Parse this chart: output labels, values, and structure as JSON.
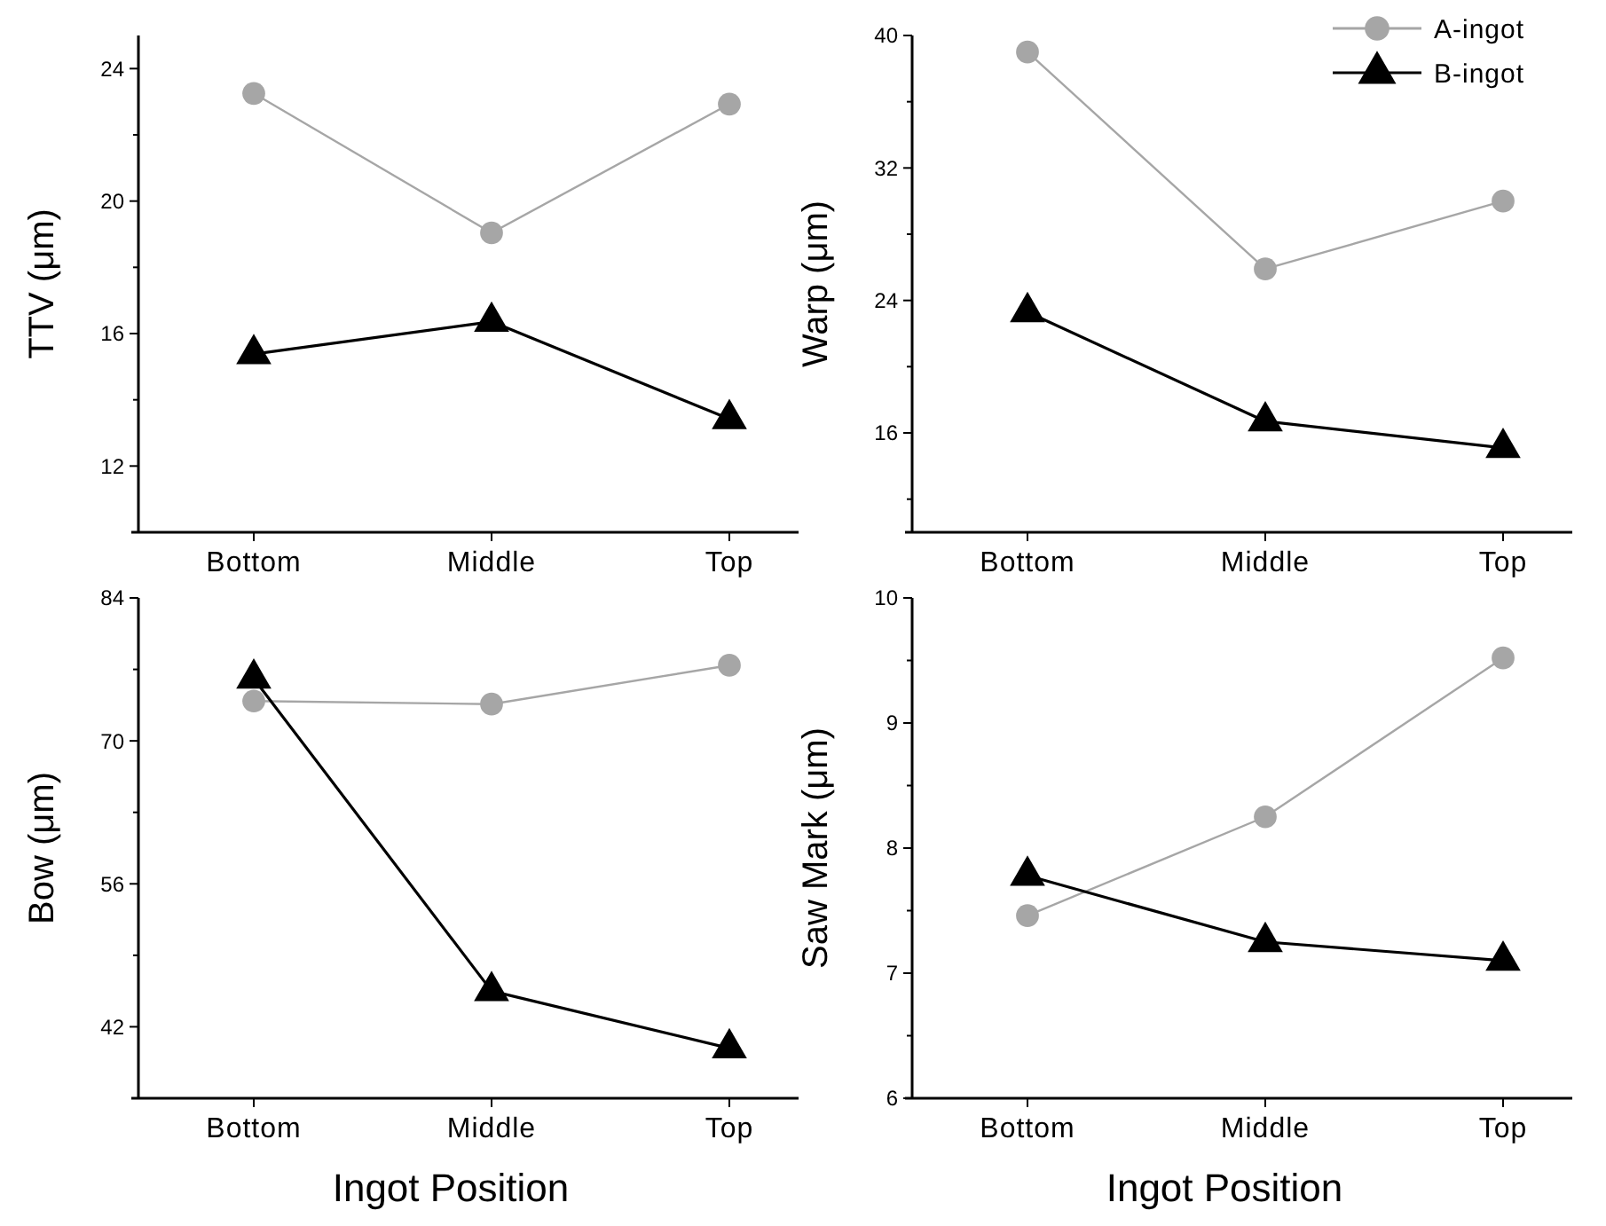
{
  "chart_data": [
    {
      "type": "line",
      "ylabel": "TTV (μm)",
      "categories": [
        "Bottom",
        "Middle",
        "Top"
      ],
      "ylim": [
        10,
        25
      ],
      "yticks": [
        12,
        {
          "value": 14,
          "label": null
        },
        16,
        {
          "value": 18,
          "label": null
        },
        20,
        {
          "value": 22,
          "label": null
        },
        24
      ],
      "legend": false,
      "series": [
        {
          "color": "#a6a6a6",
          "marker": "circle",
          "values": [
            23.25,
            19.04,
            22.93
          ]
        },
        {
          "color": "#000000",
          "marker": "triangle",
          "values": [
            15.38,
            16.36,
            13.42
          ]
        }
      ]
    },
    {
      "type": "line",
      "ylabel": "Warp (μm)",
      "categories": [
        "Bottom",
        "Middle",
        "Top"
      ],
      "ylim": [
        10,
        40
      ],
      "yticks": [
        {
          "value": 12,
          "label": null
        },
        16,
        {
          "value": 20,
          "label": null
        },
        24,
        {
          "value": 28,
          "label": null
        },
        32,
        {
          "value": 36,
          "label": null
        },
        40
      ],
      "legend": "top right",
      "series": [
        {
          "name": "A-ingot",
          "color": "#a6a6a6",
          "marker": "circle",
          "values": [
            39.0,
            25.9,
            30.0
          ]
        },
        {
          "name": "B-ingot",
          "color": "#000000",
          "marker": "triangle",
          "values": [
            23.3,
            16.7,
            15.1
          ]
        }
      ]
    },
    {
      "type": "line",
      "ylabel": "Bow (μm)",
      "xlabel": "Ingot Position",
      "categories": [
        "Bottom",
        "Middle",
        "Top"
      ],
      "ylim": [
        35,
        84
      ],
      "yticks": [
        42,
        {
          "value": 49,
          "label": null
        },
        56,
        {
          "value": 63,
          "label": null
        },
        70,
        {
          "value": 77,
          "label": null
        },
        84
      ],
      "legend": false,
      "series": [
        {
          "color": "#a6a6a6",
          "marker": "circle",
          "values": [
            73.9,
            73.6,
            77.4
          ]
        },
        {
          "color": "#000000",
          "marker": "triangle",
          "values": [
            76.1,
            45.5,
            39.9
          ]
        }
      ]
    },
    {
      "type": "line",
      "ylabel": "Saw Mark (μm)",
      "xlabel": "Ingot Position",
      "categories": [
        "Bottom",
        "Middle",
        "Top"
      ],
      "ylim": [
        6,
        10
      ],
      "yticks": [
        6,
        {
          "value": 6.5,
          "label": null
        },
        7,
        {
          "value": 7.5,
          "label": null
        },
        8,
        {
          "value": 8.5,
          "label": null
        },
        9,
        {
          "value": 9.5,
          "label": null
        },
        10
      ],
      "legend": false,
      "series": [
        {
          "color": "#a6a6a6",
          "marker": "circle",
          "values": [
            7.46,
            8.25,
            9.52
          ]
        },
        {
          "color": "#000000",
          "marker": "triangle",
          "values": [
            7.78,
            7.25,
            7.1
          ]
        }
      ]
    }
  ]
}
